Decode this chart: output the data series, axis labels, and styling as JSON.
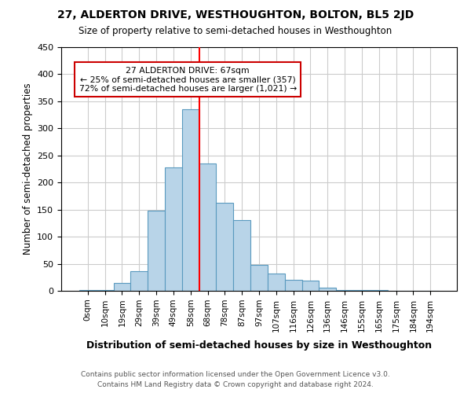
{
  "title": "27, ALDERTON DRIVE, WESTHOUGHTON, BOLTON, BL5 2JD",
  "subtitle": "Size of property relative to semi-detached houses in Westhoughton",
  "xlabel": "Distribution of semi-detached houses by size in Westhoughton",
  "ylabel": "Number of semi-detached properties",
  "bin_labels": [
    "0sqm",
    "10sqm",
    "19sqm",
    "29sqm",
    "39sqm",
    "49sqm",
    "58sqm",
    "68sqm",
    "78sqm",
    "87sqm",
    "97sqm",
    "107sqm",
    "116sqm",
    "126sqm",
    "136sqm",
    "146sqm",
    "155sqm",
    "165sqm",
    "175sqm",
    "184sqm",
    "194sqm"
  ],
  "bar_values": [
    2,
    2,
    15,
    37,
    148,
    228,
    335,
    235,
    163,
    130,
    48,
    32,
    21,
    19,
    6,
    2,
    2,
    1,
    0,
    0,
    0
  ],
  "bar_color": "#b8d4e8",
  "bar_edge_color": "#5a9abf",
  "property_line_color": "red",
  "annotation_title": "27 ALDERTON DRIVE: 67sqm",
  "annotation_line1": "← 25% of semi-detached houses are smaller (357)",
  "annotation_line2": "72% of semi-detached houses are larger (1,021) →",
  "annotation_box_color": "#ffffff",
  "annotation_box_edge": "#cc0000",
  "ylim": [
    0,
    450
  ],
  "yticks": [
    0,
    50,
    100,
    150,
    200,
    250,
    300,
    350,
    400,
    450
  ],
  "footer1": "Contains HM Land Registry data © Crown copyright and database right 2024.",
  "footer2": "Contains public sector information licensed under the Open Government Licence v3.0.",
  "background_color": "#ffffff",
  "grid_color": "#cccccc"
}
